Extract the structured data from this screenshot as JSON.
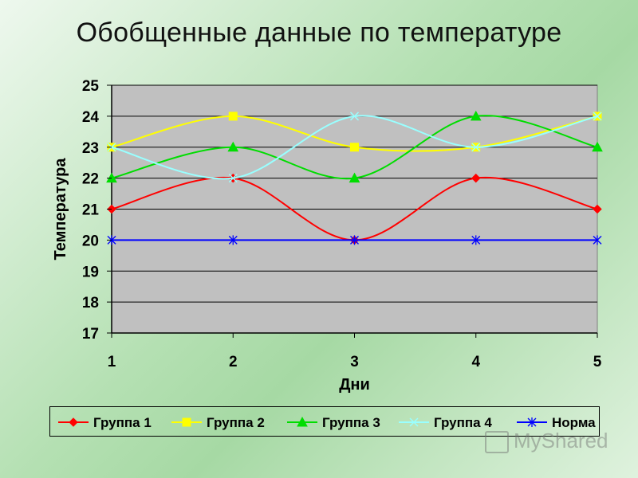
{
  "page": {
    "title": "Обобщенные данные  по температуре"
  },
  "chart_data": {
    "type": "line",
    "title": "",
    "xlabel": "Дни",
    "ylabel": "Температура",
    "x": [
      1,
      2,
      3,
      4,
      5
    ],
    "ylim": [
      17,
      25
    ],
    "yticks": [
      17,
      18,
      19,
      20,
      21,
      22,
      23,
      24,
      25
    ],
    "grid": true,
    "plot_background": "#c0c0c0",
    "legend_position": "bottom",
    "series": [
      {
        "name": "Группа 1",
        "values": [
          21,
          22,
          20,
          22,
          21
        ],
        "color": "#ff0000",
        "marker": "diamond",
        "smooth": true
      },
      {
        "name": "Группа 2",
        "values": [
          23,
          24,
          23,
          23,
          24
        ],
        "color": "#ffff00",
        "marker": "square",
        "smooth": true
      },
      {
        "name": "Группа 3",
        "values": [
          22,
          23,
          22,
          24,
          23
        ],
        "color": "#00dd00",
        "marker": "triangle",
        "smooth": true
      },
      {
        "name": "Группа 4",
        "values": [
          23,
          22,
          24,
          23,
          24
        ],
        "color": "#99ffff",
        "marker": "x",
        "smooth": true
      },
      {
        "name": "Норма",
        "values": [
          20,
          20,
          20,
          20,
          20
        ],
        "color": "#0000ff",
        "marker": "asterisk",
        "smooth": false
      }
    ]
  },
  "watermark": {
    "text": "MyShared"
  }
}
